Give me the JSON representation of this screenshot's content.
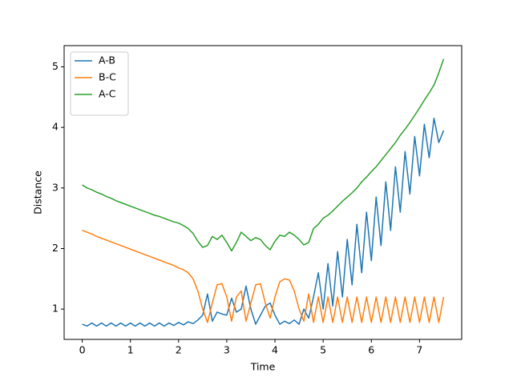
{
  "chart_data": {
    "type": "line",
    "x": [
      0,
      0.1,
      0.2,
      0.3,
      0.4,
      0.5,
      0.6,
      0.7,
      0.8,
      0.9,
      1.0,
      1.1,
      1.2,
      1.3,
      1.4,
      1.5,
      1.6,
      1.7,
      1.8,
      1.9,
      2.0,
      2.1,
      2.2,
      2.3,
      2.4,
      2.5,
      2.6,
      2.7,
      2.8,
      2.9,
      3.0,
      3.1,
      3.2,
      3.3,
      3.4,
      3.5,
      3.6,
      3.7,
      3.8,
      3.9,
      4.0,
      4.1,
      4.2,
      4.3,
      4.4,
      4.5,
      4.6,
      4.7,
      4.8,
      4.9,
      5.0,
      5.1,
      5.2,
      5.3,
      5.4,
      5.5,
      5.6,
      5.7,
      5.8,
      5.9,
      6.0,
      6.1,
      6.2,
      6.3,
      6.4,
      6.5,
      6.6,
      6.7,
      6.8,
      6.9,
      7.0,
      7.1,
      7.2,
      7.3,
      7.4,
      7.5
    ],
    "series": [
      {
        "name": "A-B",
        "color": "#1f77b4",
        "values": [
          0.75,
          0.72,
          0.77,
          0.72,
          0.77,
          0.72,
          0.77,
          0.72,
          0.77,
          0.72,
          0.77,
          0.72,
          0.77,
          0.72,
          0.77,
          0.72,
          0.77,
          0.72,
          0.77,
          0.73,
          0.78,
          0.74,
          0.79,
          0.76,
          0.82,
          0.9,
          1.25,
          0.8,
          0.95,
          0.92,
          0.9,
          1.18,
          0.95,
          1.0,
          1.38,
          1.0,
          0.75,
          0.9,
          1.05,
          1.1,
          0.9,
          0.75,
          0.8,
          0.76,
          0.82,
          0.75,
          1.0,
          0.85,
          1.2,
          1.6,
          1.0,
          1.75,
          1.05,
          1.95,
          1.2,
          2.15,
          1.4,
          2.4,
          1.6,
          2.6,
          1.8,
          2.85,
          2.05,
          3.1,
          2.3,
          3.35,
          2.6,
          3.6,
          2.9,
          3.85,
          3.2,
          4.05,
          3.5,
          4.15,
          3.75,
          3.95
        ]
      },
      {
        "name": "B-C",
        "color": "#ff7f0e",
        "values": [
          2.3,
          2.27,
          2.24,
          2.2,
          2.17,
          2.14,
          2.11,
          2.08,
          2.05,
          2.02,
          1.99,
          1.96,
          1.93,
          1.9,
          1.87,
          1.84,
          1.81,
          1.78,
          1.75,
          1.72,
          1.68,
          1.65,
          1.6,
          1.5,
          1.3,
          1.0,
          0.78,
          1.1,
          1.4,
          1.42,
          1.2,
          0.8,
          1.2,
          1.3,
          0.8,
          1.1,
          1.4,
          1.42,
          1.1,
          0.85,
          1.2,
          1.45,
          1.5,
          1.48,
          1.3,
          1.0,
          0.8,
          1.25,
          0.78,
          1.2,
          0.78,
          1.2,
          0.78,
          1.2,
          0.78,
          1.2,
          0.78,
          1.2,
          0.78,
          1.2,
          0.78,
          1.2,
          0.78,
          1.2,
          0.78,
          1.2,
          0.78,
          1.2,
          0.78,
          1.2,
          0.78,
          1.2,
          0.78,
          1.2,
          0.78,
          1.2
        ]
      },
      {
        "name": "A-C",
        "color": "#2ca02c",
        "values": [
          3.05,
          3.0,
          2.97,
          2.93,
          2.9,
          2.86,
          2.83,
          2.79,
          2.76,
          2.73,
          2.7,
          2.67,
          2.64,
          2.61,
          2.58,
          2.55,
          2.53,
          2.5,
          2.47,
          2.44,
          2.42,
          2.38,
          2.33,
          2.25,
          2.12,
          2.02,
          2.05,
          2.2,
          2.15,
          2.22,
          2.1,
          1.96,
          2.1,
          2.27,
          2.2,
          2.13,
          2.18,
          2.15,
          2.05,
          1.98,
          2.12,
          2.22,
          2.2,
          2.27,
          2.22,
          2.15,
          2.06,
          2.1,
          2.33,
          2.4,
          2.5,
          2.55,
          2.62,
          2.7,
          2.78,
          2.85,
          2.92,
          3.0,
          3.1,
          3.18,
          3.27,
          3.35,
          3.45,
          3.55,
          3.65,
          3.75,
          3.87,
          3.97,
          4.08,
          4.2,
          4.32,
          4.45,
          4.57,
          4.7,
          4.9,
          5.13
        ]
      }
    ],
    "xlabel": "Time",
    "ylabel": "Distance",
    "xlim": [
      -0.375,
      7.875
    ],
    "ylim": [
      0.5,
      5.35
    ],
    "xticks": [
      0,
      1,
      2,
      3,
      4,
      5,
      6,
      7
    ],
    "yticks": [
      1,
      2,
      3,
      4,
      5
    ],
    "legend": "upper left",
    "grid": false
  }
}
